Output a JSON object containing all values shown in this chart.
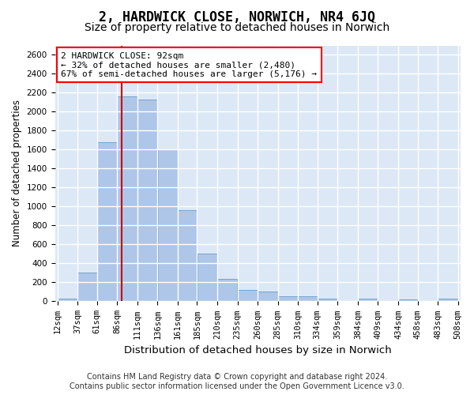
{
  "title1": "2, HARDWICK CLOSE, NORWICH, NR4 6JQ",
  "title2": "Size of property relative to detached houses in Norwich",
  "xlabel": "Distribution of detached houses by size in Norwich",
  "ylabel": "Number of detached properties",
  "footer1": "Contains HM Land Registry data © Crown copyright and database right 2024.",
  "footer2": "Contains public sector information licensed under the Open Government Licence v3.0.",
  "annotation_title": "2 HARDWICK CLOSE: 92sqm",
  "annotation_line1": "← 32% of detached houses are smaller (2,480)",
  "annotation_line2": "67% of semi-detached houses are larger (5,176) →",
  "property_size": 92,
  "bin_edges": [
    12,
    37,
    61,
    86,
    111,
    136,
    161,
    185,
    210,
    235,
    260,
    285,
    310,
    334,
    359,
    384,
    409,
    434,
    458,
    483,
    508
  ],
  "bar_heights": [
    25,
    300,
    1680,
    2160,
    2130,
    1600,
    960,
    500,
    240,
    120,
    100,
    50,
    50,
    30,
    0,
    30,
    0,
    20,
    0,
    25
  ],
  "bar_color": "#aec6e8",
  "bar_edge_color": "#5a8fc0",
  "vline_color": "#cc0000",
  "vline_x": 92,
  "ylim": [
    0,
    2700
  ],
  "yticks": [
    0,
    200,
    400,
    600,
    800,
    1000,
    1200,
    1400,
    1600,
    1800,
    2000,
    2200,
    2400,
    2600
  ],
  "background_color": "#dce8f5",
  "grid_color": "#ffffff",
  "title1_fontsize": 12,
  "title2_fontsize": 10,
  "xlabel_fontsize": 9.5,
  "ylabel_fontsize": 8.5,
  "tick_fontsize": 7.5,
  "annotation_fontsize": 8,
  "footer_fontsize": 7
}
